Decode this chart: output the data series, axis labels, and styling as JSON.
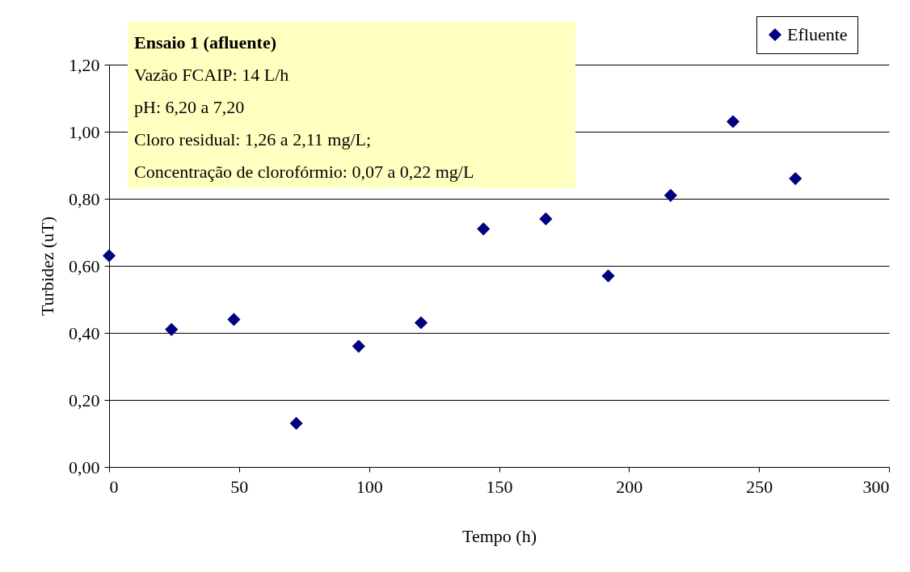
{
  "chart_data": {
    "type": "scatter",
    "xlabel": "Tempo (h)",
    "ylabel": "Turbidez (uT)",
    "x": [
      0,
      24,
      48,
      72,
      96,
      120,
      144,
      168,
      192,
      216,
      240,
      264
    ],
    "series": [
      {
        "name": "Efluente",
        "color": "#000080",
        "values": [
          0.63,
          0.41,
          0.44,
          0.13,
          0.36,
          0.43,
          0.71,
          0.74,
          0.57,
          0.81,
          1.03,
          0.86
        ]
      }
    ],
    "xlim": [
      0,
      300
    ],
    "xticks": [
      0,
      50,
      100,
      150,
      200,
      250,
      300
    ],
    "ylim": [
      0,
      1.2
    ],
    "yticks": [
      {
        "value": 0,
        "label": "0,00"
      },
      {
        "value": 0.2,
        "label": "0,20"
      },
      {
        "value": 0.4,
        "label": "0,40"
      },
      {
        "value": 0.6,
        "label": "0,60"
      },
      {
        "value": 0.8,
        "label": "0,80"
      },
      {
        "value": 1,
        "label": "1,00"
      },
      {
        "value": 1.2,
        "label": "1,20"
      }
    ],
    "annotations": [
      "Ensaio 1 (afluente)",
      "Vazão FCAIP: 14 L/h",
      "pH: 6,20 a 7,20",
      "Cloro residual: 1,26 a 2,11 mg/L;",
      "Concentração de clorofórmio: 0,07 a 0,22 mg/L"
    ],
    "grid": "y",
    "legend": "top right",
    "marker": "diamond"
  }
}
